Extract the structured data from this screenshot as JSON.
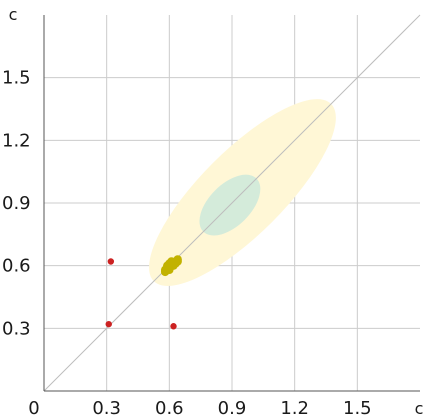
{
  "chart_data": {
    "type": "scatter",
    "title": "",
    "xlabel": "c",
    "ylabel": "c",
    "xlim": [
      0,
      1.8
    ],
    "ylim": [
      0,
      1.8
    ],
    "x_ticks": [
      0,
      0.3,
      0.6,
      0.9,
      1.2,
      1.5
    ],
    "y_ticks": [
      0.3,
      0.6,
      0.9,
      1.2,
      1.5
    ],
    "x_tick_labels": [
      "0",
      "0.3",
      "0.6",
      "0.9",
      "1.2",
      "1.5"
    ],
    "y_tick_labels": [
      "0.3",
      "0.6",
      "0.9",
      "1.2",
      "1.5"
    ],
    "grid": true,
    "reference_line": {
      "from": [
        0,
        0
      ],
      "to": [
        1.8,
        1.8
      ],
      "color": "#bdbdbd"
    },
    "ellipses": [
      {
        "center": [
          0.95,
          0.95
        ],
        "semi_major": 0.6,
        "semi_minor": 0.2,
        "angle_deg": 45,
        "color": "#fff7d6"
      },
      {
        "center": [
          0.89,
          0.89
        ],
        "semi_major": 0.18,
        "semi_minor": 0.1,
        "angle_deg": 45,
        "color": "#d4ebda"
      }
    ],
    "series": [
      {
        "color": "#cc2222",
        "points": [
          [
            0.32,
            0.62
          ],
          [
            0.31,
            0.32
          ],
          [
            0.62,
            0.31
          ]
        ]
      },
      {
        "color": "#c2b200",
        "points": [
          [
            0.58,
            0.57
          ],
          [
            0.59,
            0.58
          ],
          [
            0.6,
            0.59
          ],
          [
            0.61,
            0.6
          ],
          [
            0.62,
            0.61
          ],
          [
            0.63,
            0.62
          ],
          [
            0.64,
            0.63
          ],
          [
            0.6,
            0.61
          ],
          [
            0.62,
            0.6
          ],
          [
            0.59,
            0.6
          ],
          [
            0.61,
            0.62
          ],
          [
            0.63,
            0.61
          ],
          [
            0.58,
            0.58
          ],
          [
            0.6,
            0.58
          ],
          [
            0.64,
            0.62
          ]
        ]
      }
    ]
  }
}
